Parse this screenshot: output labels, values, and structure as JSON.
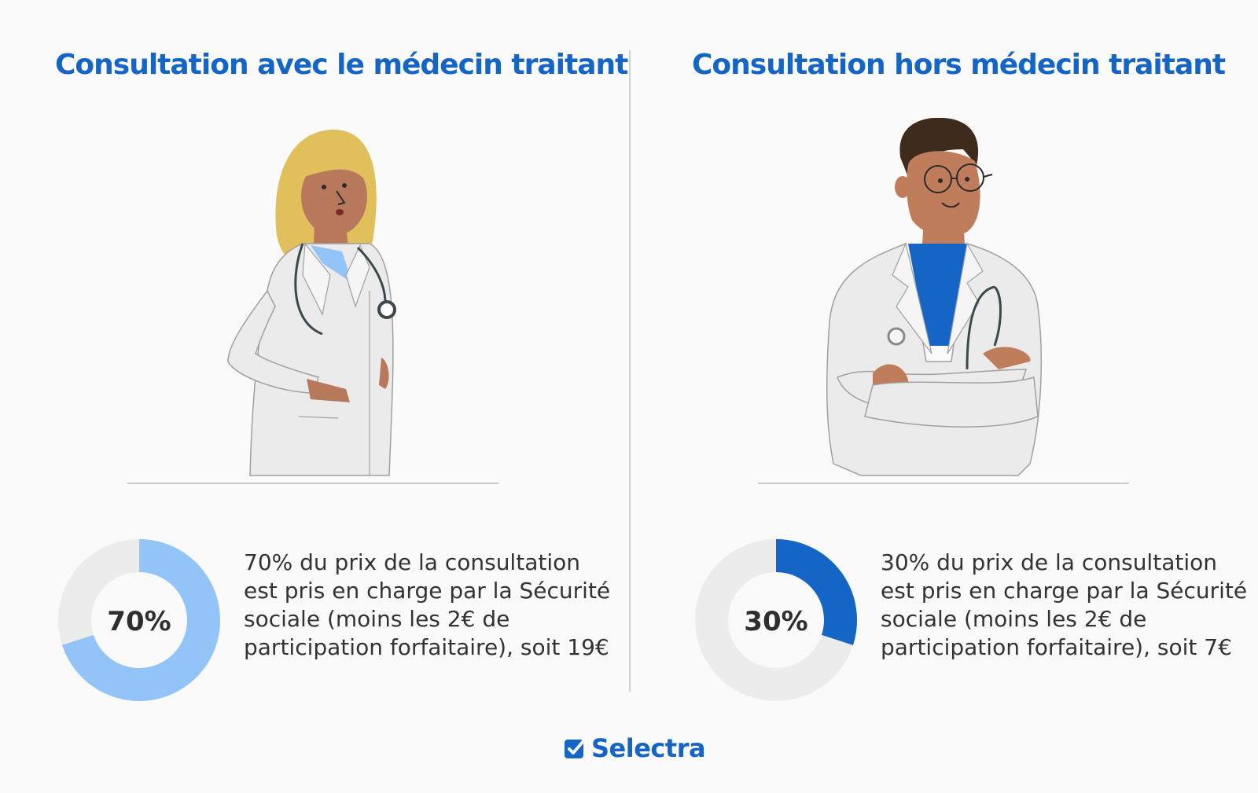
{
  "panels": [
    {
      "title": "Consultation avec le médecin traitant",
      "description": "70% du prix de la consultation est pris en charge par la Sécurité sociale (moins les 2€ de participation forfaitaire), soit 19€"
    },
    {
      "title": "Consultation hors médecin traitant",
      "description": "30% du prix de la consultation est pris en charge par la Sécurité sociale (moins les 2€ de participation forfaitaire), soit 7€"
    }
  ],
  "brand": {
    "name": "Selectra"
  },
  "colors": {
    "title": "#1565c7",
    "donut_light_blue": "#93c4f7",
    "donut_dark_blue": "#1565c7",
    "donut_track": "#ececec",
    "brand": "#1565c7"
  },
  "icons": [
    "doctor-woman-illustration",
    "doctor-man-illustration",
    "check-icon"
  ],
  "chart_data": [
    {
      "type": "pie",
      "categories": [
        "pris en charge",
        "reste"
      ],
      "values": [
        70,
        30
      ],
      "center_label": "70%",
      "colors": [
        "#93c4f7",
        "#ececec"
      ]
    },
    {
      "type": "pie",
      "categories": [
        "pris en charge",
        "reste"
      ],
      "values": [
        30,
        70
      ],
      "center_label": "30%",
      "colors": [
        "#1565c7",
        "#ececec"
      ]
    }
  ]
}
